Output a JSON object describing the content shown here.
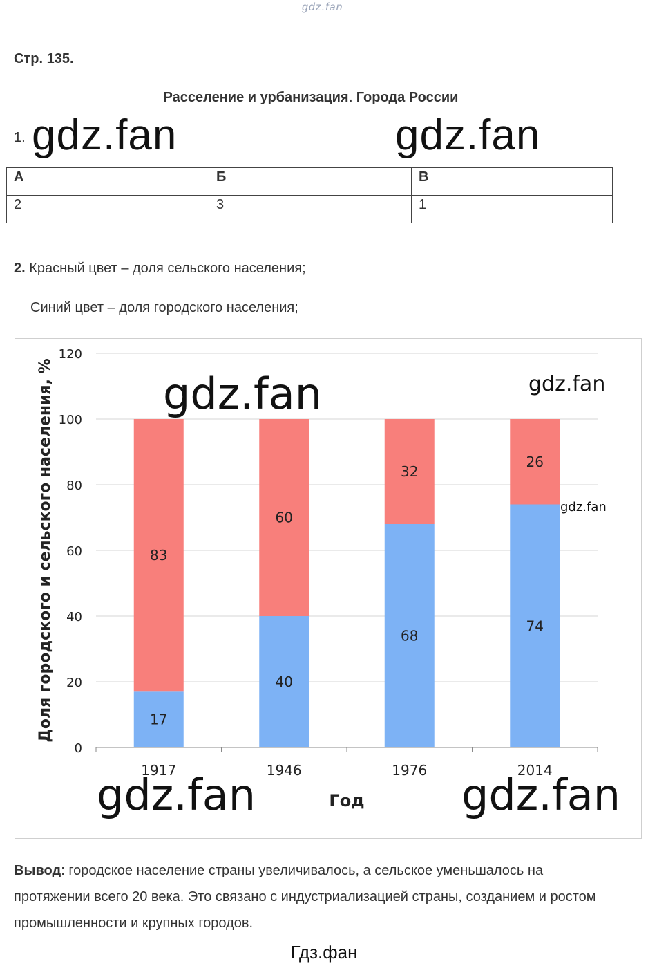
{
  "watermark_top": "gdz.fan",
  "page_ref": "Стр. 135.",
  "title": "Расселение и урбанизация. Города России",
  "q1": {
    "num": "1.",
    "headers": [
      "А",
      "Б",
      "В"
    ],
    "answers": [
      "2",
      "3",
      "1"
    ]
  },
  "q2": {
    "num": "2.",
    "line1": "Красный цвет – доля сельского населения;",
    "line2": "Синий цвет – доля городского населения;"
  },
  "watermarks": {
    "big": "gdz.fan",
    "chart_small": "gdz.fan",
    "chart_tiny": "gdz.fan"
  },
  "chart_data": {
    "type": "bar",
    "stacked": true,
    "categories": [
      "1917",
      "1946",
      "1976",
      "2014"
    ],
    "series": [
      {
        "name": "городское",
        "values": [
          17,
          40,
          68,
          74
        ],
        "color": "#7db2f5"
      },
      {
        "name": "сельское",
        "values": [
          83,
          60,
          32,
          26
        ],
        "color": "#f87f7b"
      }
    ],
    "xlabel": "Год",
    "ylabel": "Доля городского и сельского населения, %",
    "ylim": [
      0,
      120
    ],
    "yticks": [
      0,
      20,
      40,
      60,
      80,
      100,
      120
    ],
    "grid": true,
    "legend": "none"
  },
  "conclusion": {
    "label": "Вывод",
    "text": ": городское население страны увеличивалось, а сельское уменьшалось на протяжении всего 20 века. Это связано с индустриализацией страны, созданием и ростом промышленности и крупных городов."
  },
  "footer": "Гдз.фан"
}
